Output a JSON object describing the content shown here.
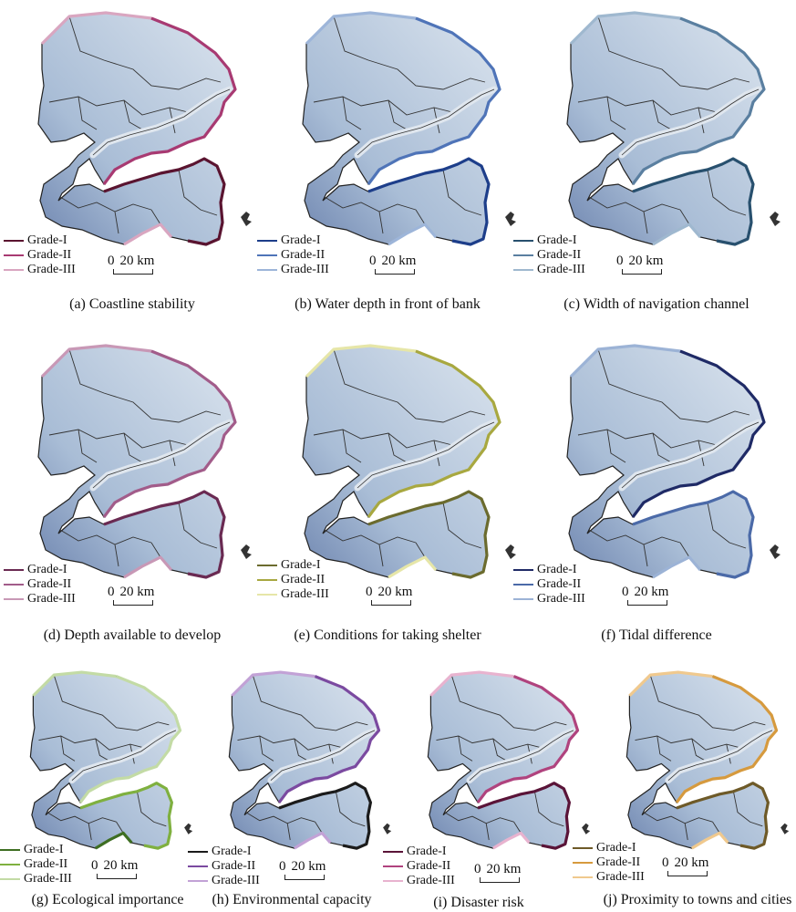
{
  "legend_labels": [
    "Grade-I",
    "Grade-II",
    "Grade-III"
  ],
  "scale": {
    "zero": "0",
    "dist": "20 km"
  },
  "panels": [
    {
      "id": "a",
      "caption": "(a) Coastline stability",
      "colors": [
        "#5a1430",
        "#a83a72",
        "#d9a6c0"
      ]
    },
    {
      "id": "b",
      "caption": "(b) Water depth in front of bank",
      "colors": [
        "#1d3e8a",
        "#4f74b8",
        "#9db5d9"
      ]
    },
    {
      "id": "c",
      "caption": "(c) Width of navigation channel",
      "colors": [
        "#28506e",
        "#5a7fa0",
        "#9fb8cf"
      ]
    },
    {
      "id": "d",
      "caption": "(d) Depth available to develop",
      "colors": [
        "#6a2a52",
        "#a25c8a",
        "#c898b6"
      ]
    },
    {
      "id": "e",
      "caption": "(e) Conditions for taking shelter",
      "colors": [
        "#6b6b2e",
        "#a8a840",
        "#e6e6a8"
      ]
    },
    {
      "id": "f",
      "caption": "(f) Tidal difference",
      "colors": [
        "#1f2a66",
        "#4b6aa8",
        "#9cb3d6"
      ]
    },
    {
      "id": "g",
      "caption": "(g) Ecological importance",
      "colors": [
        "#3e6e22",
        "#7fb03f",
        "#c3dba5"
      ]
    },
    {
      "id": "h",
      "caption": "(h) Environmental capacity",
      "colors": [
        "#1b1b1b",
        "#7b4aa0",
        "#c2a2d6"
      ]
    },
    {
      "id": "i",
      "caption": "(i) Disaster risk",
      "colors": [
        "#5a1438",
        "#b0437e",
        "#e8b3cf"
      ]
    },
    {
      "id": "j",
      "caption": "(j) Proximity to towns and cities",
      "colors": [
        "#6e5a28",
        "#d69a3e",
        "#f0c98e"
      ]
    }
  ]
}
